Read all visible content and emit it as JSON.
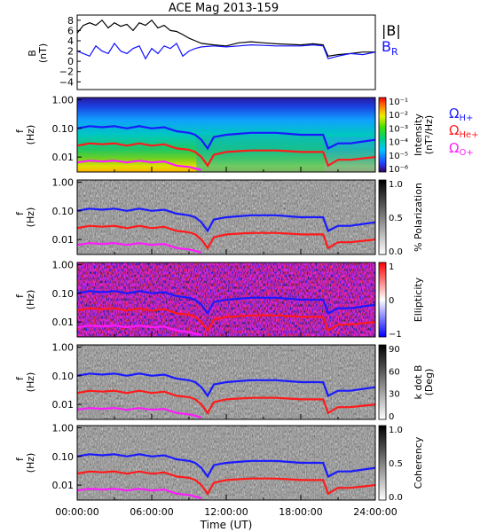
{
  "title": "ACE Mag 2013-159",
  "x_axis": {
    "label": "Time (UT)",
    "ticks": [
      "00:00:00",
      "06:00:00",
      "12:00:00",
      "18:00:00",
      "24:00:00"
    ]
  },
  "legend_top": {
    "B": "|B|",
    "BR": "B",
    "BR_sub": "R"
  },
  "freq_legend": [
    {
      "symbol": "Ω",
      "sub": "H+",
      "color": "#2222ff"
    },
    {
      "symbol": "Ω",
      "sub": "He+",
      "color": "#ff2020"
    },
    {
      "symbol": "Ω",
      "sub": "O+",
      "color": "#ff20ff"
    }
  ],
  "freq_axis": {
    "label": "f",
    "unit": "(Hz)",
    "ticks": [
      "1.00",
      "0.10",
      "0.01"
    ]
  },
  "panels": [
    {
      "id": "intensity",
      "colorbar_label": "Intensity",
      "colorbar_unit": "(nT²/Hz)",
      "colorbar_ticks": [
        "10⁻¹",
        "10⁻²",
        "10⁻³",
        "10⁻⁴",
        "10⁻⁵",
        "10⁻⁶"
      ],
      "colormap": "rainbow"
    },
    {
      "id": "polarization",
      "colorbar_label": "% Polarization",
      "colorbar_unit": "",
      "colorbar_ticks": [
        "1.0",
        "0.5",
        "0.0"
      ],
      "colormap": "gray"
    },
    {
      "id": "ellipticity",
      "colorbar_label": "Ellipticity",
      "colorbar_unit": "",
      "colorbar_ticks": [
        "1",
        "0",
        "−1"
      ],
      "colormap": "bwr"
    },
    {
      "id": "kdotb",
      "colorbar_label": "k dot B",
      "colorbar_unit": "(Deg)",
      "colorbar_ticks": [
        "90",
        "60",
        "30",
        "0"
      ],
      "colormap": "gray"
    },
    {
      "id": "coherency",
      "colorbar_label": "Coherency",
      "colorbar_unit": "",
      "colorbar_ticks": [
        "1.0",
        "0.5",
        "0.0"
      ],
      "colormap": "gray"
    }
  ],
  "chart_data": {
    "type": "line",
    "x_unit": "hours UT",
    "x_range": [
      0,
      24
    ],
    "b_panel": {
      "ylabel": "B",
      "yunit": "(nT)",
      "yticks": [
        "8",
        "6",
        "4",
        "2",
        "0",
        "−2",
        "−4"
      ],
      "ylim": [
        -5.5,
        9
      ],
      "series": [
        {
          "name": "|B|",
          "color": "#000000",
          "x": [
            0,
            0.5,
            1,
            1.5,
            2,
            2.5,
            3,
            3.5,
            4,
            4.5,
            5,
            5.5,
            6,
            6.5,
            7,
            7.5,
            8,
            8.5,
            9,
            9.5,
            10,
            11,
            12,
            13,
            14,
            15,
            16,
            17,
            18,
            19,
            19.8,
            20.2,
            21,
            22,
            23,
            24
          ],
          "y": [
            5.5,
            7,
            7.5,
            7,
            8,
            6.5,
            7.5,
            6.8,
            7.2,
            6,
            7.5,
            7,
            8,
            6.5,
            7,
            6,
            5.8,
            5.2,
            4.5,
            4,
            3.5,
            3.2,
            3,
            3.6,
            3.8,
            3.6,
            3.4,
            3.3,
            3.2,
            3.4,
            3.2,
            1,
            1.3,
            1.5,
            1.8,
            1.8
          ]
        },
        {
          "name": "B_R",
          "color": "#1010ff",
          "x": [
            0,
            0.5,
            1,
            1.5,
            2,
            2.5,
            3,
            3.5,
            4,
            4.5,
            5,
            5.5,
            6,
            6.5,
            7,
            7.5,
            8,
            8.5,
            9,
            9.5,
            10,
            11,
            12,
            13,
            14,
            15,
            16,
            17,
            18,
            19,
            19.8,
            20.2,
            21,
            22,
            23,
            24
          ],
          "y": [
            2,
            1.5,
            1,
            3,
            2,
            1.5,
            3.5,
            2,
            1.5,
            2.5,
            3,
            0.5,
            2.5,
            1.5,
            3,
            2.5,
            3.5,
            1,
            2,
            2.5,
            2.8,
            3,
            2.8,
            3,
            3.2,
            3.1,
            3,
            3,
            3,
            3.2,
            3,
            0.5,
            1,
            1.5,
            1.3,
            1.8
          ]
        }
      ]
    },
    "freq_lines": [
      {
        "name": "Ω_H+",
        "color": "#1a1aff",
        "x": [
          0,
          1,
          2,
          3,
          4,
          5,
          6,
          7,
          8,
          9,
          9.5,
          10,
          10.5,
          11,
          12,
          13,
          14,
          15,
          16,
          17,
          18,
          19,
          19.8,
          20.2,
          21,
          22,
          23,
          24
        ],
        "y": [
          0.1,
          0.12,
          0.11,
          0.12,
          0.1,
          0.12,
          0.1,
          0.11,
          0.08,
          0.07,
          0.06,
          0.04,
          0.02,
          0.05,
          0.06,
          0.065,
          0.07,
          0.07,
          0.07,
          0.065,
          0.06,
          0.06,
          0.06,
          0.02,
          0.03,
          0.03,
          0.035,
          0.04
        ]
      },
      {
        "name": "Ω_He+",
        "color": "#ff1a1a",
        "x": [
          0,
          1,
          2,
          3,
          4,
          5,
          6,
          7,
          8,
          9,
          9.5,
          10,
          10.5,
          11,
          12,
          13,
          14,
          15,
          16,
          17,
          18,
          19,
          19.8,
          20.2,
          21,
          22,
          23,
          24
        ],
        "y": [
          0.025,
          0.03,
          0.028,
          0.03,
          0.025,
          0.03,
          0.025,
          0.028,
          0.02,
          0.018,
          0.015,
          0.01,
          0.005,
          0.012,
          0.015,
          0.016,
          0.017,
          0.017,
          0.017,
          0.016,
          0.015,
          0.015,
          0.015,
          0.005,
          0.008,
          0.008,
          0.009,
          0.01
        ]
      },
      {
        "name": "Ω_O+",
        "color": "#ff1aff",
        "x": [
          0,
          1,
          2,
          3,
          4,
          5,
          6,
          7,
          8,
          9,
          9.5,
          10
        ],
        "y": [
          0.0065,
          0.0075,
          0.007,
          0.0075,
          0.0065,
          0.0075,
          0.0065,
          0.007,
          0.005,
          0.0045,
          0.004,
          0.0035
        ]
      }
    ],
    "freq_range_hz": [
      0.003,
      1.2
    ]
  }
}
